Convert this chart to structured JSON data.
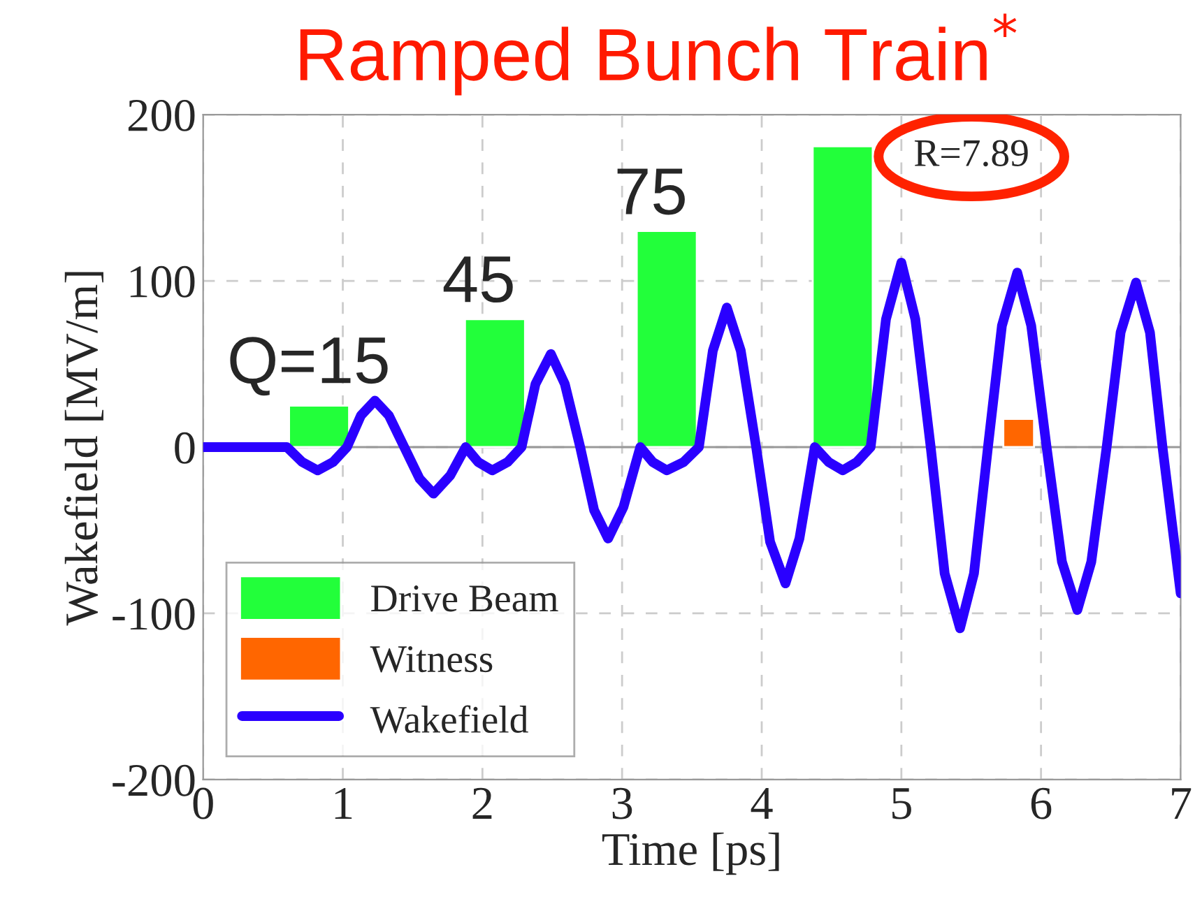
{
  "chart_data": {
    "type": "bar",
    "title": "Ramped Bunch Train$^{*}$",
    "xlabel": "Time [ps]",
    "ylabel": "Wakefield [MV/m]",
    "xlim": [
      0,
      7
    ],
    "ylim": [
      -200,
      200
    ],
    "xticks": [
      0,
      1,
      2,
      3,
      4,
      5,
      6,
      7
    ],
    "yticks": [
      -200,
      -100,
      0,
      100,
      200
    ],
    "grid": true,
    "legend": "bottom left",
    "series": [
      {
        "name": "Drive Beam",
        "color": "#22ff3a",
        "x": [
          0.83,
          2.09,
          3.32,
          4.58
        ],
        "values": [
          25,
          77,
          130,
          181
        ]
      },
      {
        "name": "Witness",
        "color": "#ff6600",
        "x": [
          5.84
        ],
        "values": [
          17
        ]
      },
      {
        "name": "Wakefield",
        "type": "line",
        "color": "#2a00ff",
        "x": [
          0,
          0.6,
          0.71,
          0.82,
          0.93,
          1.03,
          1.13,
          1.23,
          1.33,
          1.44,
          1.55,
          1.65,
          1.77,
          1.88,
          1.97,
          2.07,
          2.18,
          2.28,
          2.38,
          2.49,
          2.59,
          2.7,
          2.8,
          2.9,
          3.01,
          3.13,
          3.22,
          3.32,
          3.44,
          3.55,
          3.65,
          3.75,
          3.85,
          3.96,
          4.06,
          4.17,
          4.27,
          4.38,
          4.48,
          4.58,
          4.68,
          4.78,
          4.89,
          5.0,
          5.1,
          5.21,
          5.31,
          5.42,
          5.52,
          5.62,
          5.72,
          5.83,
          5.93,
          6.04,
          6.15,
          6.26,
          6.36,
          6.47,
          6.57,
          6.68,
          6.78,
          6.87,
          7.0
        ],
        "values": [
          0,
          0,
          -9,
          -14,
          -9,
          0,
          19,
          28,
          19,
          0,
          -19,
          -28,
          -17,
          0,
          -9,
          -14,
          -9,
          0,
          38,
          56,
          38,
          0,
          -38,
          -55,
          -36,
          0,
          -9,
          -14,
          -9,
          0,
          58,
          84,
          58,
          0,
          -57,
          -82,
          -55,
          0,
          -9,
          -14,
          -9,
          0,
          77,
          111,
          77,
          0,
          -76,
          -109,
          -76,
          0,
          73,
          105,
          73,
          0,
          -69,
          -98,
          -69,
          0,
          69,
          99,
          69,
          0,
          -88
        ]
      }
    ],
    "annotations": [
      "Q=15",
      "45",
      "75",
      "R=7.89"
    ]
  }
}
